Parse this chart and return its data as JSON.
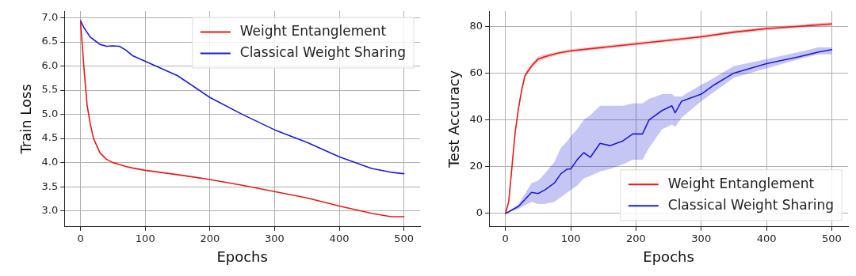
{
  "chart_data": [
    {
      "type": "line",
      "xlabel": "Epochs",
      "ylabel": "Train Loss",
      "xlim": [
        -25,
        525
      ],
      "ylim": [
        2.67,
        7.14
      ],
      "xticks": [
        0,
        100,
        200,
        300,
        400,
        500
      ],
      "yticks": [
        {
          "value": 3,
          "label": "3.0"
        },
        {
          "value": 3.5,
          "label": "3.5"
        },
        {
          "value": 4,
          "label": "4.0"
        },
        {
          "value": 4.5,
          "label": "4.5"
        },
        {
          "value": 5,
          "label": "5.0"
        },
        {
          "value": 5.5,
          "label": "5.5"
        },
        {
          "value": 6,
          "label": "6.0"
        },
        {
          "value": 6.5,
          "label": "6.5"
        },
        {
          "value": 7,
          "label": "7.0"
        }
      ],
      "grid": true,
      "legend": "top right",
      "marker": "none",
      "line_style": "solid",
      "x": [
        0,
        5,
        10,
        15,
        20,
        30,
        40,
        50,
        60,
        70,
        80,
        100,
        150,
        200,
        250,
        300,
        350,
        400,
        450,
        480,
        500
      ],
      "series": [
        {
          "name": "Weight Entanglement",
          "color": "#e31a1c",
          "values": [
            6.9,
            6.0,
            5.2,
            4.8,
            4.5,
            4.2,
            4.07,
            4.0,
            3.96,
            3.92,
            3.89,
            3.84,
            3.75,
            3.65,
            3.53,
            3.4,
            3.27,
            3.1,
            2.95,
            2.88,
            2.88
          ]
        },
        {
          "name": "Classical Weight Sharing",
          "color": "#1c1cd6",
          "values": [
            6.94,
            6.8,
            6.7,
            6.6,
            6.55,
            6.45,
            6.41,
            6.42,
            6.41,
            6.33,
            6.22,
            6.1,
            5.8,
            5.35,
            5.0,
            4.68,
            4.42,
            4.12,
            3.88,
            3.8,
            3.77
          ]
        }
      ]
    },
    {
      "type": "line",
      "xlabel": "Epochs",
      "ylabel": "Test Accuracy",
      "xlim": [
        -25,
        525
      ],
      "ylim": [
        -5.7,
        86.5
      ],
      "xticks": [
        0,
        100,
        200,
        300,
        400,
        500
      ],
      "yticks": [
        0,
        20,
        40,
        60,
        80
      ],
      "grid": true,
      "legend": "bottom right",
      "marker": "none",
      "line_style": "solid",
      "series": [
        {
          "name": "Weight Entanglement",
          "color": "#e31a1c",
          "x": [
            0,
            5,
            10,
            15,
            20,
            25,
            30,
            40,
            50,
            60,
            80,
            100,
            150,
            200,
            250,
            300,
            350,
            400,
            450,
            500
          ],
          "values": [
            0,
            5,
            20,
            35,
            45,
            53,
            59,
            63,
            66,
            67,
            68.5,
            69.5,
            71,
            72.5,
            74,
            75.5,
            77.5,
            79,
            80,
            81
          ],
          "lower": [
            0,
            4,
            19,
            34,
            44,
            52,
            58,
            62,
            65,
            66,
            67.8,
            68.8,
            70.3,
            71.8,
            73.3,
            74.8,
            76.8,
            78.3,
            79.3,
            80.2
          ],
          "upper": [
            0,
            6,
            21,
            36,
            46,
            54,
            60,
            64,
            67,
            68,
            69.2,
            70.2,
            71.7,
            73.2,
            74.7,
            76.2,
            78.2,
            79.7,
            80.7,
            81.8
          ]
        },
        {
          "name": "Classical Weight Sharing",
          "color": "#1c1cd6",
          "x": [
            0,
            20,
            40,
            50,
            60,
            75,
            85,
            95,
            100,
            110,
            120,
            130,
            145,
            160,
            180,
            195,
            210,
            220,
            240,
            255,
            260,
            270,
            300,
            320,
            350,
            400,
            450,
            480,
            500
          ],
          "values": [
            0,
            3,
            9,
            8.5,
            10,
            13,
            17,
            19,
            19,
            23,
            26,
            24,
            30,
            29,
            31,
            34,
            34,
            40,
            44,
            46,
            43,
            48,
            51,
            55,
            60,
            64,
            67,
            69,
            70
          ],
          "lower": [
            0,
            2,
            5,
            4,
            4,
            5,
            7,
            9,
            10,
            12,
            15,
            16,
            18,
            19,
            21,
            23,
            23,
            28,
            36,
            38,
            37,
            41,
            48,
            52,
            58,
            62,
            66,
            68,
            68
          ],
          "upper": [
            0,
            4,
            13,
            14,
            17,
            22,
            28,
            31,
            33,
            36,
            40,
            42,
            46,
            46,
            46,
            47,
            47,
            49,
            51,
            51,
            50,
            50,
            55,
            58,
            63,
            66,
            69,
            71,
            71
          ]
        }
      ]
    }
  ]
}
